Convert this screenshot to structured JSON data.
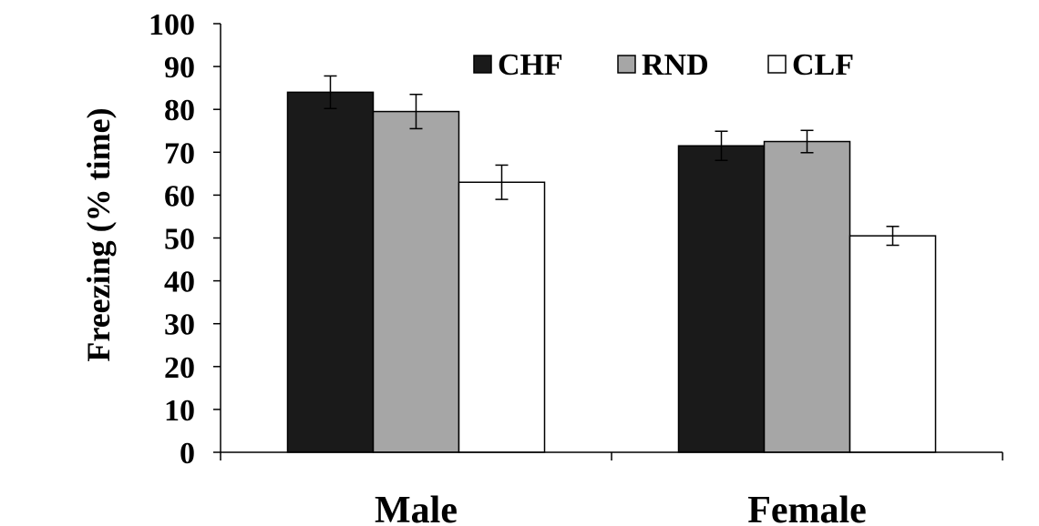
{
  "chart_data": {
    "type": "bar",
    "title": "",
    "xlabel": "",
    "ylabel": "Freezing  (% time)",
    "ylim": [
      0,
      100
    ],
    "yticks": [
      0,
      10,
      20,
      30,
      40,
      50,
      60,
      70,
      80,
      90,
      100
    ],
    "categories": [
      "Male",
      "Female"
    ],
    "series": [
      {
        "name": "CHF",
        "color": "#1a1a1a",
        "values": [
          84,
          71.5
        ],
        "errors": [
          3.8,
          3.4
        ]
      },
      {
        "name": "RND",
        "color": "#a6a6a6",
        "values": [
          79.5,
          72.5
        ],
        "errors": [
          4.0,
          2.6
        ]
      },
      {
        "name": "CLF",
        "color": "#ffffff",
        "values": [
          63,
          50.5
        ],
        "errors": [
          4.0,
          2.2
        ]
      }
    ],
    "legend_position": "top-right",
    "grid": false
  }
}
